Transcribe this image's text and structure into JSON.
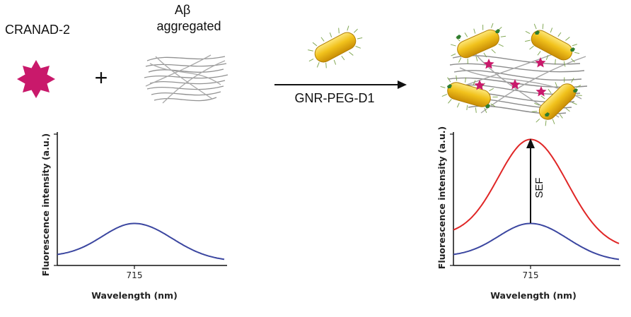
{
  "labels": {
    "cranad": "CRANAD-2",
    "abeta_line1": "Aβ",
    "abeta_line2": "aggregated",
    "plus": "+",
    "reagent": "GNR-PEG-D1",
    "sef": "SEF"
  },
  "colors": {
    "magenta_star": "#c9196b",
    "gold_rod": "#e8b10b",
    "fiber": "#8c8c8c",
    "arrow": "#111111",
    "blue_curve": "#3b46a0",
    "red_curve": "#e02626"
  },
  "chart_data": [
    {
      "type": "line",
      "xlabel": "Wavelength (nm)",
      "ylabel": "Fluorescence intensity (a.u.)",
      "x_ticks": [
        715
      ],
      "series": [
        {
          "color": "#3b46a0",
          "peak_x": 715,
          "relative_peak": 0.32,
          "baseline_left": 0.07,
          "baseline_right": 0.03
        }
      ]
    },
    {
      "type": "line",
      "xlabel": "Wavelength (nm)",
      "ylabel": "Fluorescence intensity (a.u.)",
      "x_ticks": [
        715
      ],
      "annotation": "SEF",
      "series": [
        {
          "color": "#e02626",
          "peak_x": 715,
          "relative_peak": 0.96,
          "baseline_left": 0.23,
          "baseline_right": 0.12
        },
        {
          "color": "#3b46a0",
          "peak_x": 715,
          "relative_peak": 0.32,
          "baseline_left": 0.07,
          "baseline_right": 0.03
        }
      ]
    }
  ]
}
